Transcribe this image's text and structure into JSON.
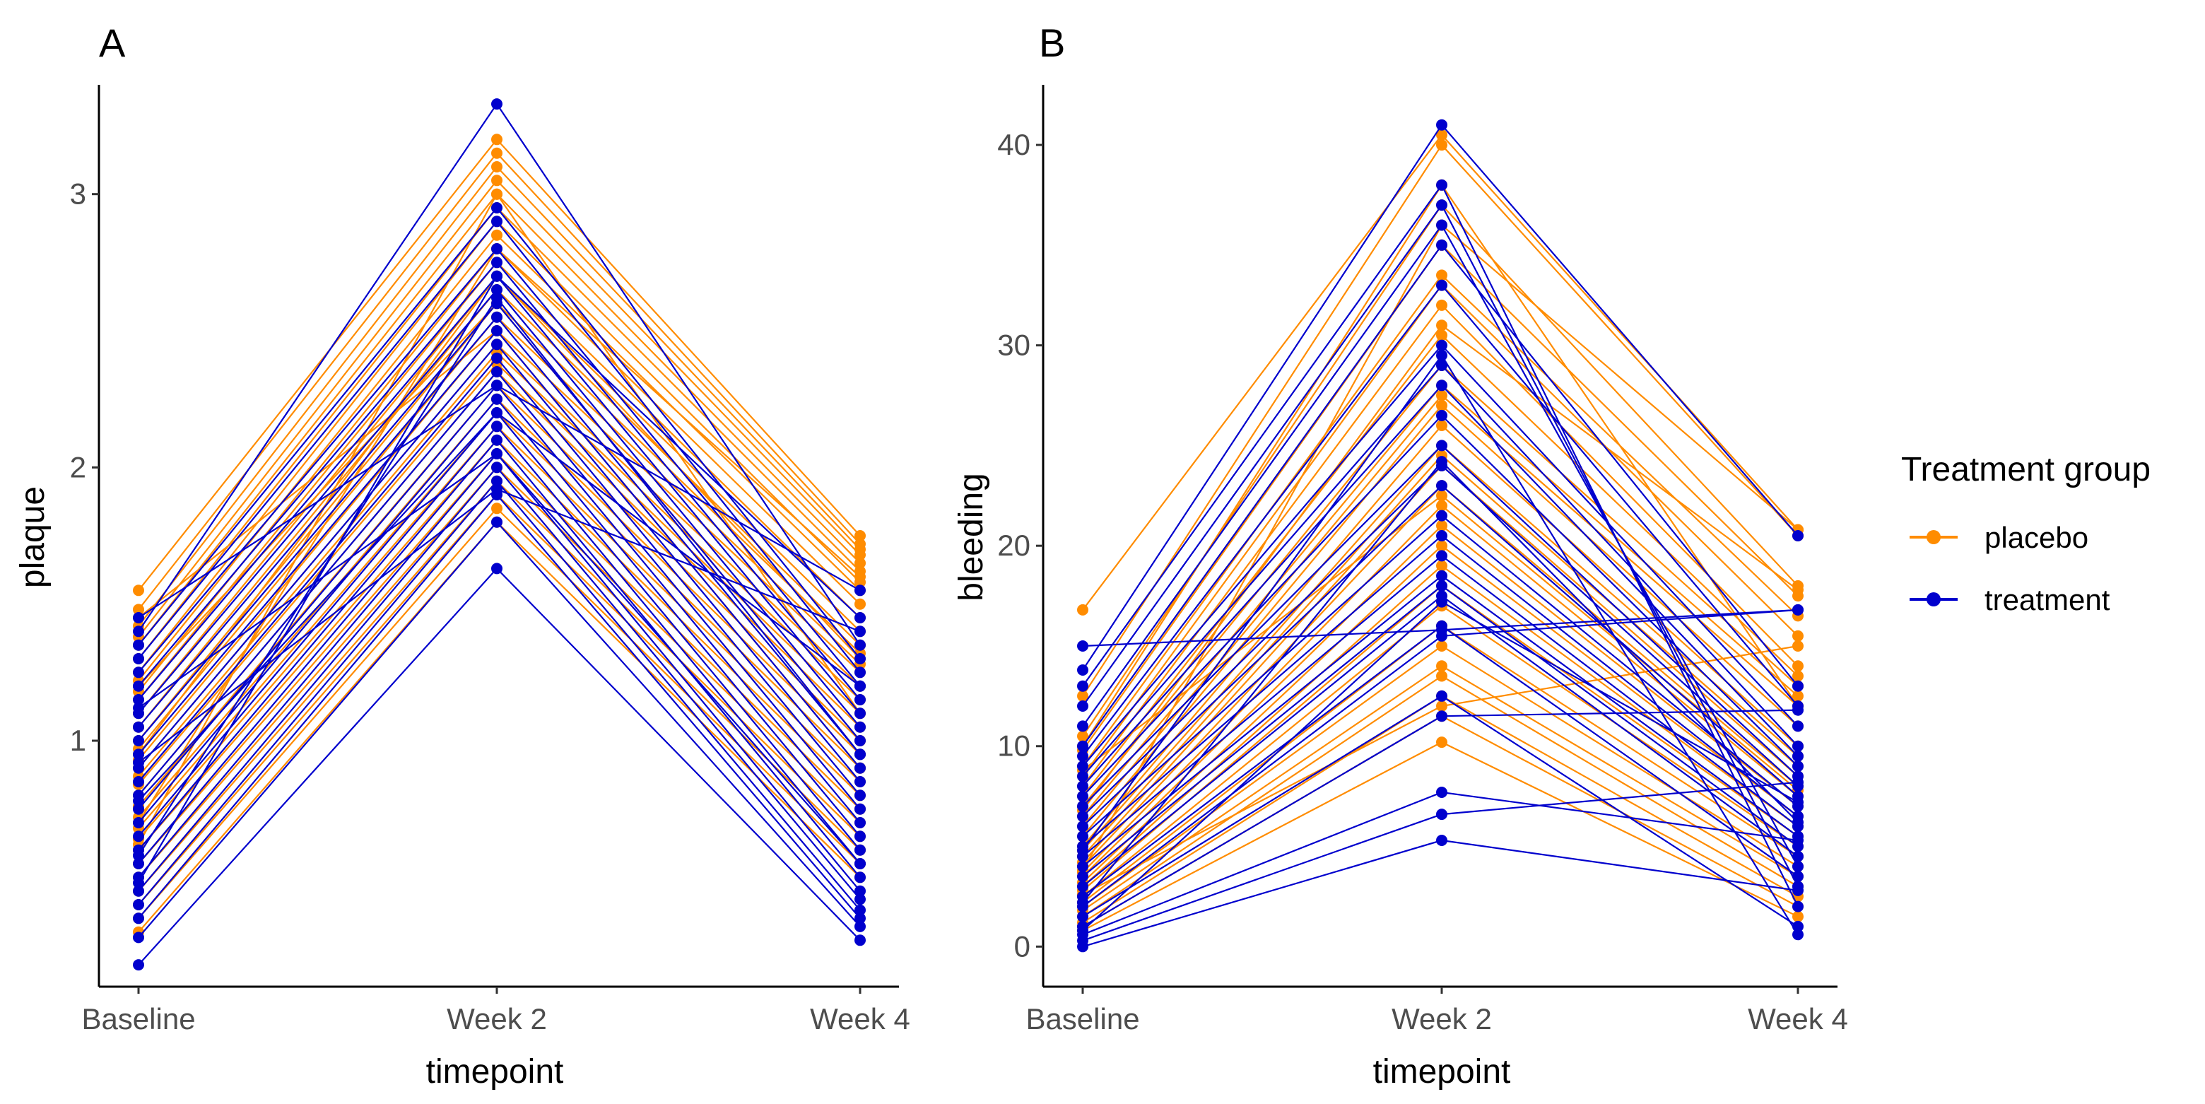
{
  "chart_data": [
    {
      "type": "line",
      "panel_tag": "A",
      "xlabel": "timepoint",
      "ylabel": "plaque",
      "categories": [
        "Baseline",
        "Week 2",
        "Week 4"
      ],
      "ylim": [
        0.1,
        3.4
      ],
      "yticks": [
        1,
        2,
        3
      ],
      "grid": false,
      "series": [
        {
          "name": "placebo",
          "color": "#FF8C00",
          "lines": [
            [
              1.55,
              3.2,
              1.75
            ],
            [
              1.48,
              3.15,
              1.72
            ],
            [
              1.42,
              3.1,
              1.7
            ],
            [
              1.38,
              3.05,
              1.68
            ],
            [
              1.35,
              3.0,
              1.65
            ],
            [
              1.3,
              2.95,
              1.62
            ],
            [
              1.25,
              2.9,
              1.58
            ],
            [
              1.22,
              2.85,
              1.55
            ],
            [
              1.18,
              2.8,
              1.5
            ],
            [
              1.15,
              2.75,
              1.45
            ],
            [
              1.1,
              2.7,
              1.4
            ],
            [
              1.05,
              2.65,
              1.35
            ],
            [
              1.0,
              2.6,
              1.32
            ],
            [
              0.97,
              2.55,
              1.28
            ],
            [
              0.93,
              2.5,
              1.25
            ],
            [
              0.9,
              2.45,
              1.2
            ],
            [
              0.87,
              2.42,
              1.15
            ],
            [
              0.84,
              2.38,
              1.1
            ],
            [
              0.8,
              2.35,
              1.05
            ],
            [
              0.76,
              2.3,
              1.0
            ],
            [
              0.72,
              2.25,
              0.95
            ],
            [
              0.68,
              2.2,
              0.9
            ],
            [
              0.64,
              2.15,
              0.85
            ],
            [
              0.6,
              2.1,
              0.8
            ],
            [
              0.55,
              2.05,
              0.75
            ],
            [
              0.5,
              2.0,
              0.7
            ],
            [
              0.45,
              1.95,
              0.65
            ],
            [
              0.4,
              1.9,
              0.6
            ],
            [
              0.35,
              1.85,
              0.55
            ],
            [
              0.3,
              1.8,
              0.5
            ],
            [
              1.2,
              2.6,
              1.0
            ],
            [
              0.95,
              2.7,
              1.3
            ],
            [
              0.7,
              2.8,
              1.6
            ],
            [
              1.45,
              2.5,
              0.9
            ],
            [
              0.62,
              3.0,
              1.1
            ]
          ]
        },
        {
          "name": "treatment",
          "color": "#0000CD",
          "lines": [
            [
              0.18,
              1.63,
              0.27
            ],
            [
              0.28,
              1.8,
              0.32
            ],
            [
              0.35,
              1.9,
              0.35
            ],
            [
              0.4,
              1.95,
              0.38
            ],
            [
              0.45,
              2.0,
              0.42
            ],
            [
              0.5,
              2.05,
              0.45
            ],
            [
              0.55,
              2.1,
              0.5
            ],
            [
              0.6,
              2.15,
              0.55
            ],
            [
              0.65,
              2.2,
              0.6
            ],
            [
              0.7,
              2.25,
              0.65
            ],
            [
              0.75,
              2.3,
              0.7
            ],
            [
              0.8,
              2.35,
              0.75
            ],
            [
              0.85,
              2.4,
              0.8
            ],
            [
              0.9,
              2.45,
              0.85
            ],
            [
              0.95,
              2.5,
              0.9
            ],
            [
              1.0,
              2.55,
              0.95
            ],
            [
              1.05,
              2.6,
              1.0
            ],
            [
              1.1,
              2.65,
              1.05
            ],
            [
              1.15,
              2.7,
              1.1
            ],
            [
              1.2,
              2.75,
              1.15
            ],
            [
              1.25,
              2.8,
              1.2
            ],
            [
              1.3,
              2.9,
              1.25
            ],
            [
              1.35,
              2.95,
              1.3
            ],
            [
              1.4,
              3.33,
              1.35
            ],
            [
              1.45,
              2.3,
              1.55
            ],
            [
              0.48,
              2.7,
              1.45
            ],
            [
              0.78,
              2.2,
              1.2
            ],
            [
              1.12,
              2.05,
              0.55
            ],
            [
              0.58,
              2.62,
              0.95
            ],
            [
              0.92,
              1.92,
              1.4
            ]
          ]
        }
      ]
    },
    {
      "type": "line",
      "panel_tag": "B",
      "xlabel": "timepoint",
      "ylabel": "bleeding",
      "categories": [
        "Baseline",
        "Week 2",
        "Week 4"
      ],
      "ylim": [
        -2,
        43
      ],
      "yticks": [
        0,
        10,
        20,
        30,
        40
      ],
      "grid": false,
      "series": [
        {
          "name": "placebo",
          "color": "#FF8C00",
          "lines": [
            [
              16.8,
              40.5,
              20.8
            ],
            [
              12.5,
              40.0,
              20.5
            ],
            [
              10.5,
              37.0,
              18.0
            ],
            [
              9.8,
              35.0,
              17.5
            ],
            [
              9.0,
              33.5,
              16.5
            ],
            [
              8.5,
              33.0,
              15.5
            ],
            [
              8.0,
              32.0,
              14.0
            ],
            [
              7.5,
              30.5,
              13.5
            ],
            [
              7.0,
              29.0,
              13.0
            ],
            [
              6.5,
              28.0,
              12.5
            ],
            [
              6.0,
              27.5,
              12.0
            ],
            [
              5.5,
              27.0,
              11.0
            ],
            [
              5.0,
              26.0,
              10.0
            ],
            [
              4.8,
              25.0,
              9.5
            ],
            [
              4.5,
              24.5,
              9.0
            ],
            [
              4.2,
              24.0,
              8.5
            ],
            [
              4.0,
              23.0,
              8.0
            ],
            [
              3.7,
              22.0,
              7.5
            ],
            [
              3.5,
              21.0,
              7.0
            ],
            [
              3.2,
              20.0,
              6.5
            ],
            [
              3.0,
              19.0,
              6.0
            ],
            [
              2.8,
              18.0,
              5.5
            ],
            [
              2.5,
              17.0,
              5.0
            ],
            [
              2.2,
              16.0,
              4.5
            ],
            [
              2.0,
              15.0,
              4.0
            ],
            [
              1.8,
              14.0,
              3.5
            ],
            [
              1.5,
              13.5,
              3.0
            ],
            [
              1.2,
              12.5,
              2.5
            ],
            [
              1.0,
              11.5,
              2.0
            ],
            [
              0.8,
              10.2,
              1.5
            ],
            [
              10.0,
              38.0,
              12.0
            ],
            [
              3.8,
              36.0,
              20.8
            ],
            [
              6.8,
              31.0,
              17.8
            ],
            [
              2.6,
              12.0,
              15.0
            ],
            [
              8.8,
              22.5,
              7.8
            ]
          ]
        },
        {
          "name": "treatment",
          "color": "#0000CD",
          "lines": [
            [
              0.0,
              5.3,
              2.8
            ],
            [
              0.3,
              6.6,
              8.2
            ],
            [
              0.6,
              7.7,
              5.3
            ],
            [
              1.0,
              11.5,
              11.8
            ],
            [
              1.5,
              12.5,
              1.0
            ],
            [
              2.0,
              15.5,
              16.8
            ],
            [
              2.5,
              16.0,
              3.5
            ],
            [
              3.0,
              17.5,
              4.5
            ],
            [
              3.5,
              18.0,
              5.0
            ],
            [
              4.0,
              18.5,
              5.5
            ],
            [
              4.5,
              19.5,
              6.0
            ],
            [
              5.0,
              20.5,
              6.5
            ],
            [
              5.5,
              21.5,
              7.0
            ],
            [
              6.0,
              23.0,
              7.5
            ],
            [
              6.5,
              24.0,
              8.0
            ],
            [
              7.0,
              25.0,
              8.5
            ],
            [
              7.5,
              26.5,
              9.0
            ],
            [
              8.0,
              28.0,
              9.5
            ],
            [
              8.5,
              29.0,
              10.0
            ],
            [
              9.0,
              30.0,
              11.0
            ],
            [
              9.5,
              33.0,
              12.0
            ],
            [
              10.0,
              35.0,
              13.0
            ],
            [
              11.0,
              36.0,
              4.0
            ],
            [
              12.0,
              37.0,
              3.0
            ],
            [
              13.0,
              38.0,
              2.0
            ],
            [
              13.8,
              41.0,
              20.5
            ],
            [
              15.0,
              15.8,
              16.8
            ],
            [
              4.8,
              29.5,
              0.6
            ],
            [
              2.2,
              24.2,
              6.2
            ],
            [
              0.8,
              17.2,
              7.2
            ]
          ]
        }
      ]
    }
  ],
  "legend": {
    "title": "Treatment group",
    "items": [
      {
        "label": "placebo",
        "color": "#FF8C00"
      },
      {
        "label": "treatment",
        "color": "#0000CD"
      }
    ]
  }
}
